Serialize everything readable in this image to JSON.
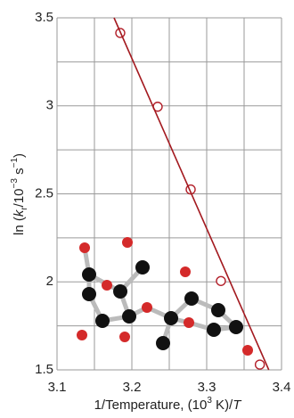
{
  "chart_data": {
    "type": "scatter",
    "x_label": [
      "1/Temperature, (10",
      "3",
      " K)/",
      "T"
    ],
    "y_label": [
      "ln (",
      "k",
      "r",
      "/10",
      "−3",
      " s",
      "−1",
      ")"
    ],
    "series": [
      {
        "kind": "points",
        "color": "#b3202a",
        "x": [
          3.1845,
          3.2345,
          3.2786,
          3.319,
          3.371
        ],
        "values": [
          3.414,
          2.995,
          2.525,
          2.005,
          1.53
        ]
      },
      {
        "kind": "fit",
        "color": "#a3191f",
        "x": [
          3.1762,
          3.383
        ],
        "values": [
          3.5,
          1.5
        ]
      }
    ],
    "xlim": [
      3.1,
      3.4
    ],
    "xticks": [
      3.1,
      3.2,
      3.3,
      3.4
    ],
    "xminor": [
      3.15,
      3.25,
      3.35
    ],
    "ylim": [
      1.5,
      3.5
    ],
    "yticks": [
      1.5,
      2,
      2.5,
      3,
      3.5
    ],
    "yminor": [
      1.75,
      2.25,
      2.75,
      3.25
    ],
    "grid": true
  }
}
